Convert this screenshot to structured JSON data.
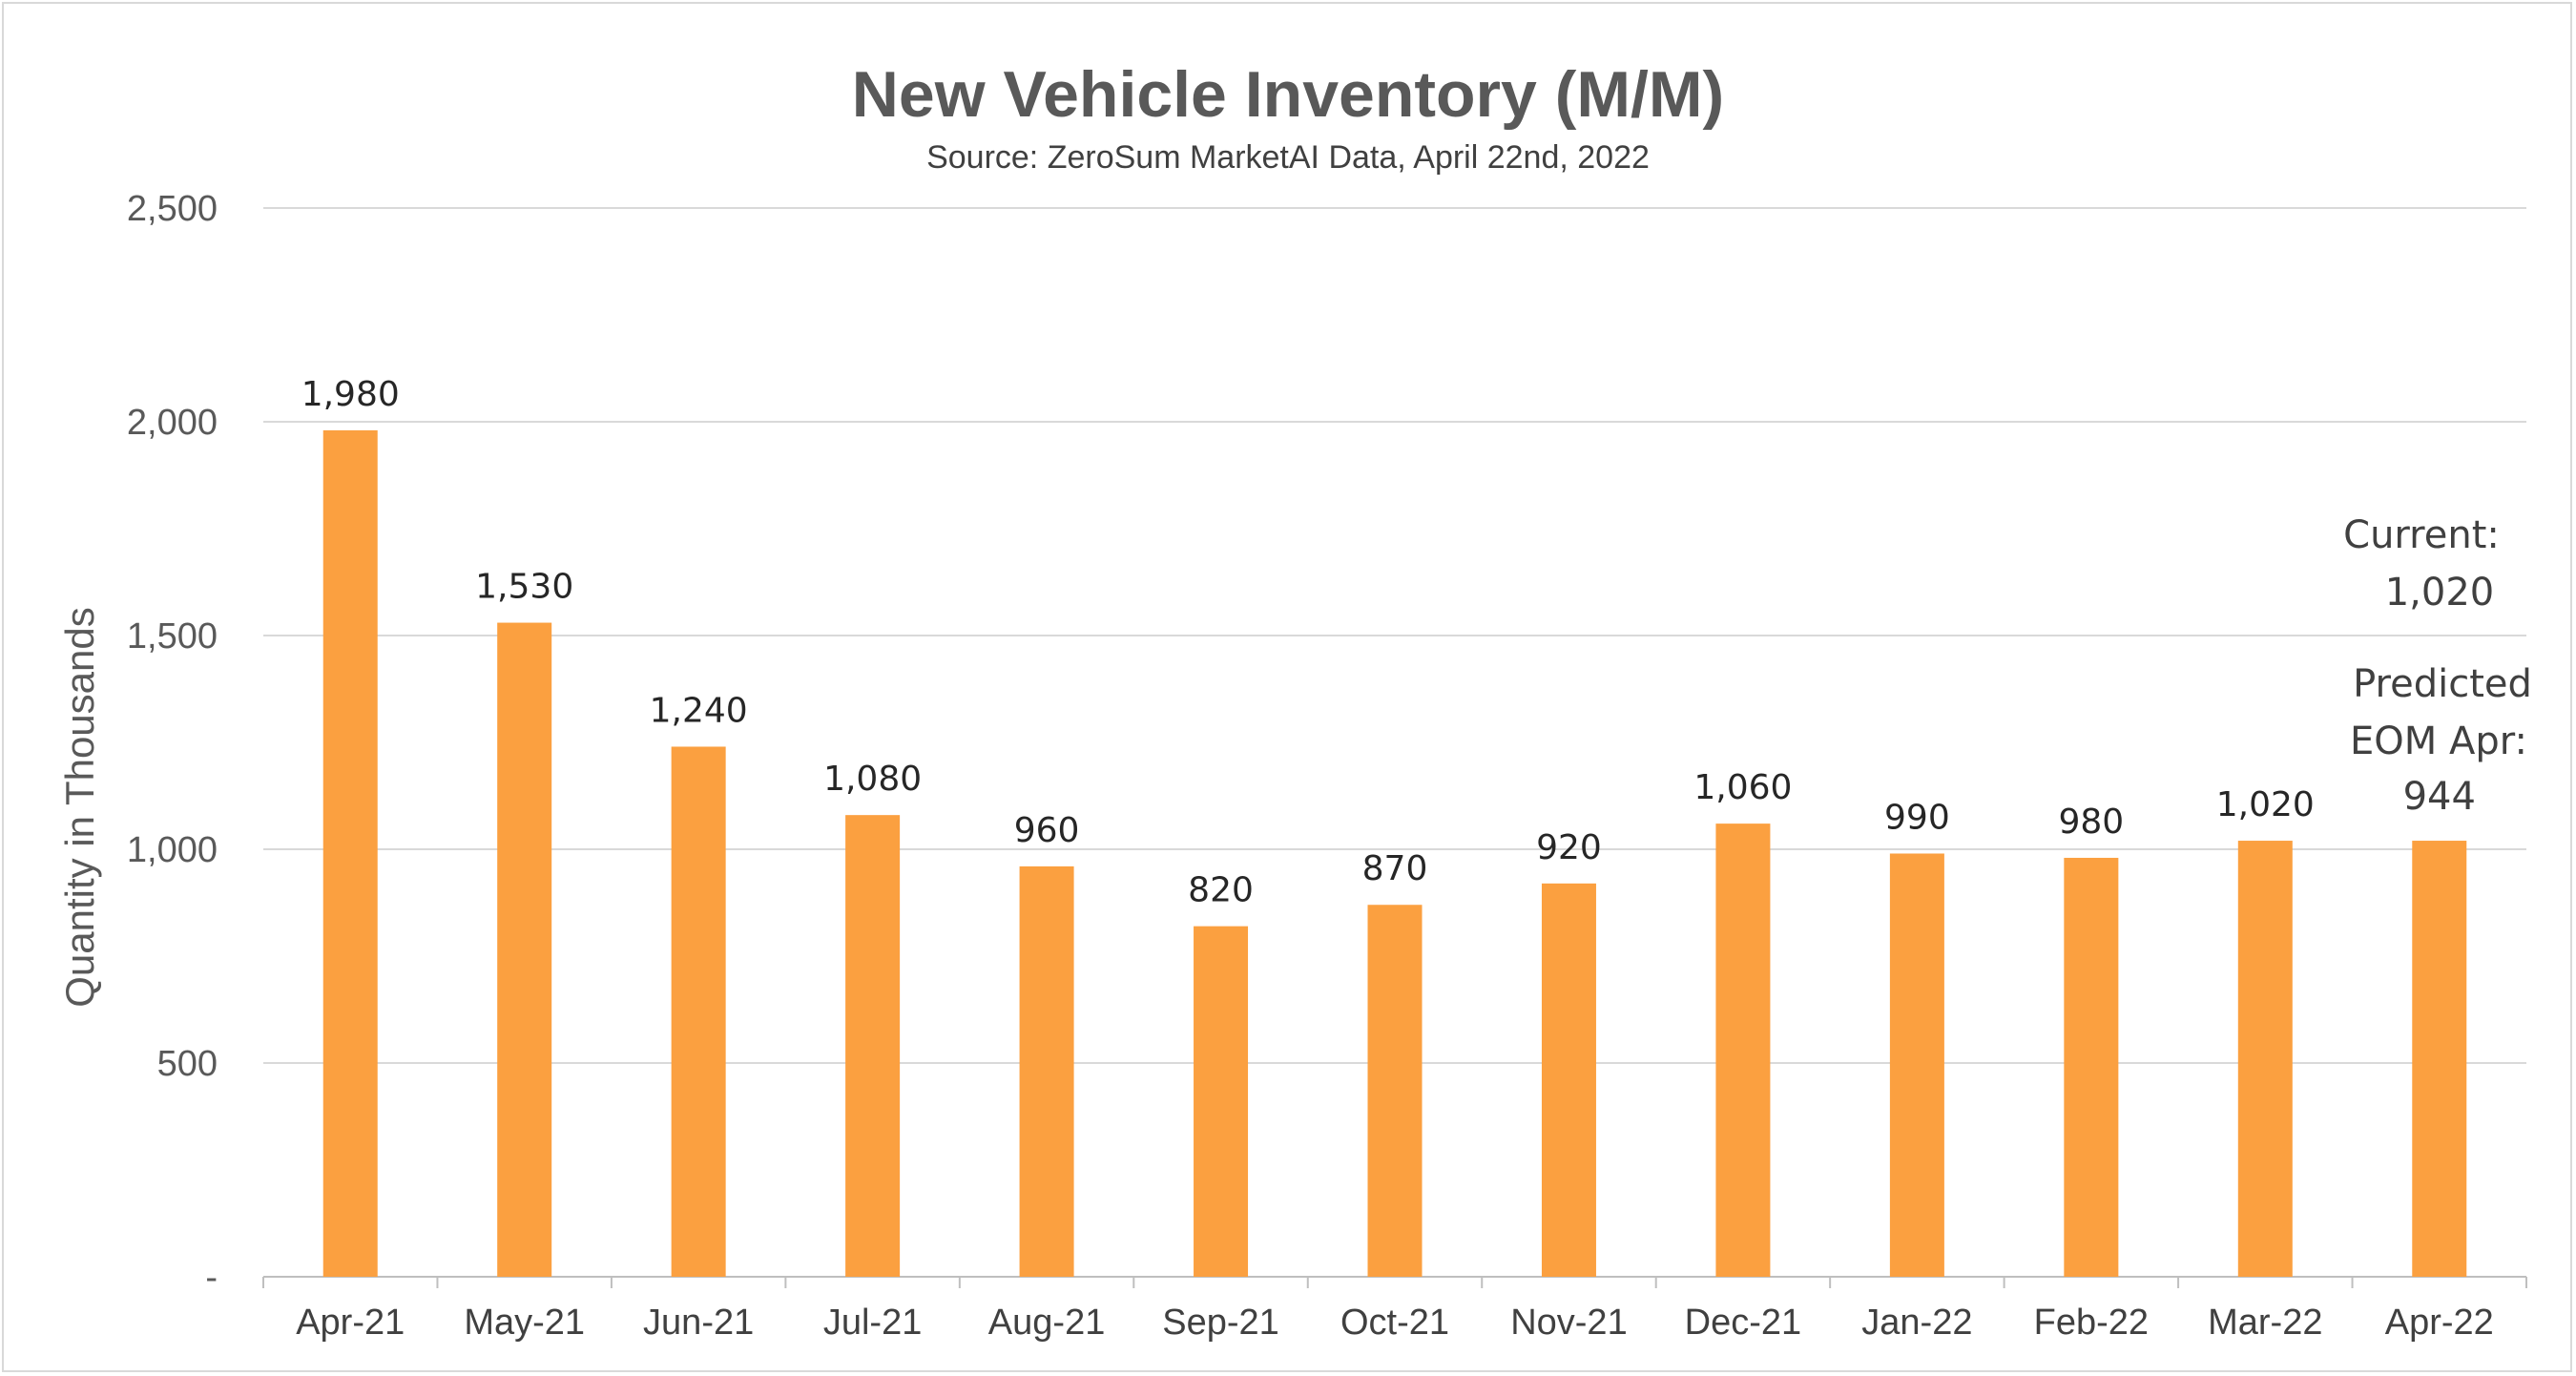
{
  "chart_data": {
    "type": "bar",
    "title": "New Vehicle Inventory (M/M)",
    "subtitle": "Source: ZeroSum MarketAI Data, April 22nd, 2022",
    "xlabel": "",
    "ylabel": "Quantity in Thousands",
    "ylim": [
      0,
      2500
    ],
    "yticks": [
      0,
      500,
      1000,
      1500,
      2000,
      2500
    ],
    "ytick_labels": [
      "-",
      "500",
      "1,000",
      "1,500",
      "2,000",
      "2,500"
    ],
    "grid": true,
    "legend": "none",
    "categories": [
      "Apr-21",
      "May-21",
      "Jun-21",
      "Jul-21",
      "Aug-21",
      "Sep-21",
      "Oct-21",
      "Nov-21",
      "Dec-21",
      "Jan-22",
      "Feb-22",
      "Mar-22",
      "Apr-22"
    ],
    "values": [
      1980,
      1530,
      1240,
      1080,
      960,
      820,
      870,
      920,
      1060,
      990,
      980,
      1020,
      1020
    ],
    "data_labels": [
      "1,980",
      "1,530",
      "1,240",
      "1,080",
      "960",
      "820",
      "870",
      "920",
      "1,060",
      "990",
      "980",
      "1,020",
      ""
    ],
    "annotation": {
      "lines": [
        "Current:",
        "1,020",
        "Predicted",
        "EOM Apr:",
        "944"
      ]
    },
    "colors": {
      "bar": "#FBA040",
      "grid": "#d9d9d9",
      "text": "#595959"
    }
  }
}
